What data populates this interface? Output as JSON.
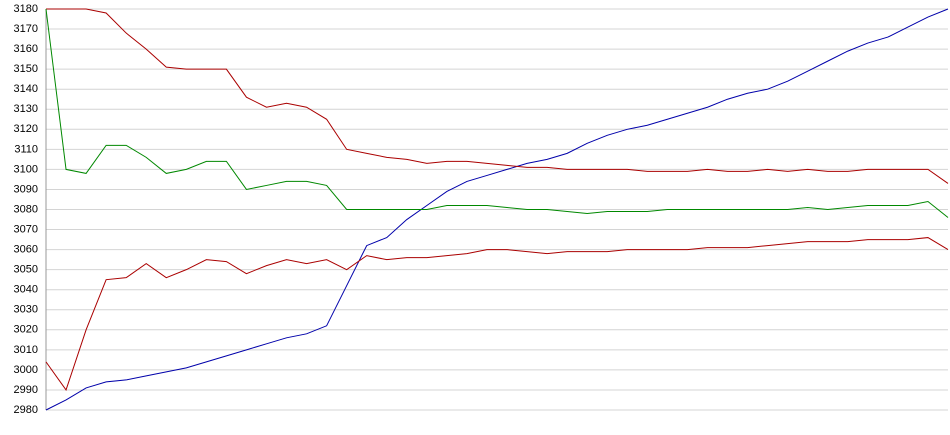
{
  "chart_data": {
    "type": "line",
    "ylim": [
      2980,
      3180
    ],
    "yticks": [
      2980,
      2990,
      3000,
      3010,
      3020,
      3030,
      3040,
      3050,
      3060,
      3070,
      3080,
      3090,
      3100,
      3110,
      3120,
      3130,
      3140,
      3150,
      3160,
      3170,
      3180
    ],
    "grid": true,
    "series": [
      {
        "color": "#0000aa",
        "values": [
          2980,
          2985,
          2991,
          2994,
          2995,
          2997,
          2999,
          3001,
          3004,
          3007,
          3010,
          3013,
          3016,
          3018,
          3022,
          3042,
          3062,
          3066,
          3075,
          3082,
          3089,
          3094,
          3097,
          3100,
          3103,
          3105,
          3108,
          3113,
          3117,
          3120,
          3122,
          3125,
          3128,
          3131,
          3135,
          3138,
          3140,
          3144,
          3149,
          3154,
          3159,
          3163,
          3166,
          3171,
          3176,
          3180
        ]
      },
      {
        "color": "#aa0000",
        "values": [
          3180,
          3180,
          3180,
          3178,
          3168,
          3160,
          3151,
          3150,
          3150,
          3150,
          3136,
          3131,
          3133,
          3131,
          3125,
          3110,
          3108,
          3106,
          3105,
          3103,
          3104,
          3104,
          3103,
          3102,
          3101,
          3101,
          3100,
          3100,
          3100,
          3100,
          3099,
          3099,
          3099,
          3100,
          3099,
          3099,
          3100,
          3099,
          3100,
          3099,
          3099,
          3100,
          3100,
          3100,
          3100,
          3093
        ]
      },
      {
        "color": "#008800",
        "values": [
          3180,
          3100,
          3098,
          3112,
          3112,
          3106,
          3098,
          3100,
          3104,
          3104,
          3090,
          3092,
          3094,
          3094,
          3092,
          3080,
          3080,
          3080,
          3080,
          3080,
          3082,
          3082,
          3082,
          3081,
          3080,
          3080,
          3079,
          3078,
          3079,
          3079,
          3079,
          3080,
          3080,
          3080,
          3080,
          3080,
          3080,
          3080,
          3081,
          3080,
          3081,
          3082,
          3082,
          3082,
          3084,
          3076
        ]
      },
      {
        "color": "#aa0000",
        "values": [
          3004,
          2990,
          3020,
          3045,
          3046,
          3053,
          3046,
          3050,
          3055,
          3054,
          3048,
          3052,
          3055,
          3053,
          3055,
          3050,
          3057,
          3055,
          3056,
          3056,
          3057,
          3058,
          3060,
          3060,
          3059,
          3058,
          3059,
          3059,
          3059,
          3060,
          3060,
          3060,
          3060,
          3061,
          3061,
          3061,
          3062,
          3063,
          3064,
          3064,
          3064,
          3065,
          3065,
          3065,
          3066,
          3060
        ]
      }
    ]
  }
}
